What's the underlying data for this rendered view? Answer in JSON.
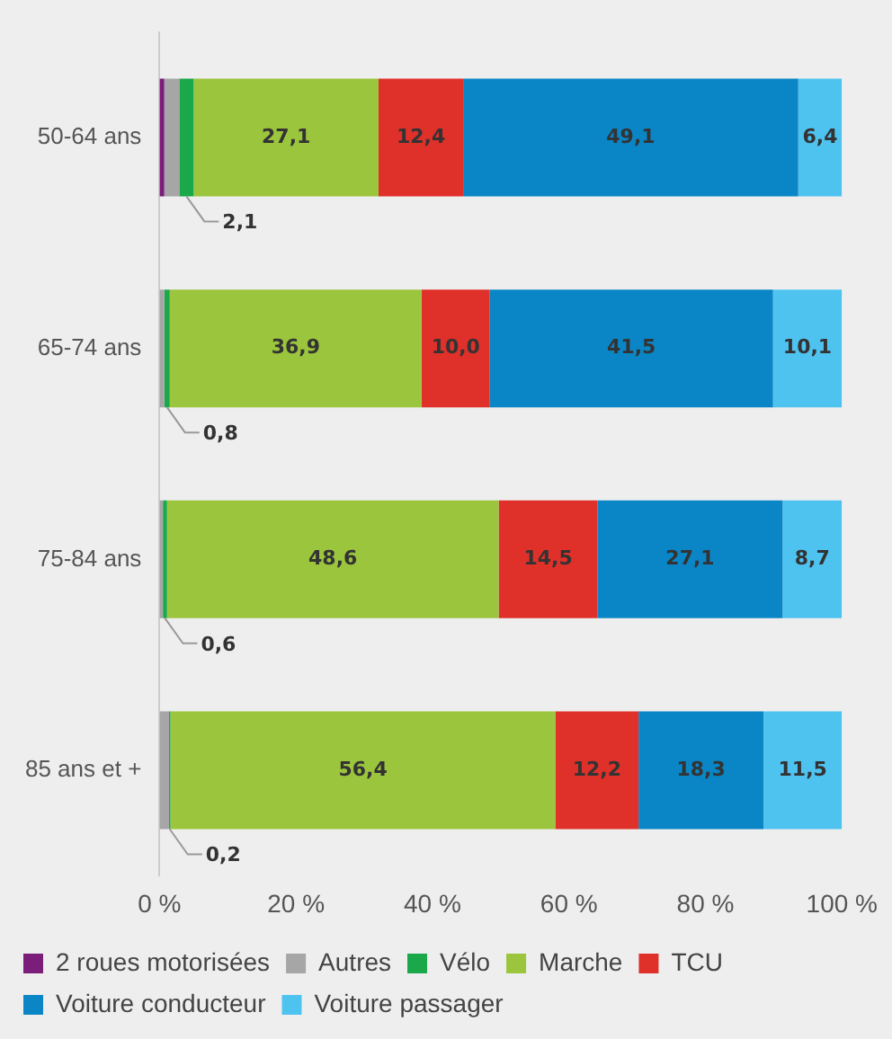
{
  "chart_data": {
    "type": "bar",
    "orientation": "horizontal",
    "stacked": true,
    "categories": [
      "50-64 ans",
      "65-74 ans",
      "75-84 ans",
      "85 ans et +"
    ],
    "series": [
      {
        "name": "2 roues motorisées",
        "color": "#7b1e7a",
        "values": [
          0.7,
          null,
          null,
          null
        ]
      },
      {
        "name": "Autres",
        "color": "#a6a6a6",
        "values": [
          2.2,
          0.7,
          0.5,
          1.4
        ]
      },
      {
        "name": "Vélo",
        "color": "#1aa84a",
        "values": [
          2.1,
          0.8,
          0.6,
          0.2
        ],
        "value_labels": [
          "2,1",
          "0,8",
          "0,6",
          "0,2"
        ]
      },
      {
        "name": "Marche",
        "color": "#9bc53d",
        "values": [
          27.1,
          36.9,
          48.6,
          56.4
        ],
        "value_labels": [
          "27,1",
          "36,9",
          "48,6",
          "56,4"
        ]
      },
      {
        "name": "TCU",
        "color": "#e0302a",
        "values": [
          12.4,
          10.0,
          14.5,
          12.2
        ],
        "value_labels": [
          "12,4",
          "10,0",
          "14,5",
          "12,2"
        ]
      },
      {
        "name": "Voiture conducteur",
        "color": "#0a86c6",
        "values": [
          49.1,
          41.5,
          27.1,
          18.3
        ],
        "value_labels": [
          "49,1",
          "41,5",
          "27,1",
          "18,3"
        ]
      },
      {
        "name": "Voiture passager",
        "color": "#4fc3f0",
        "values": [
          6.4,
          10.1,
          8.7,
          11.5
        ],
        "value_labels": [
          "6,4",
          "10,1",
          "8,7",
          "11,5"
        ]
      }
    ],
    "xlim": [
      0,
      100
    ],
    "xticks": [
      {
        "value": 0,
        "label": "0 %"
      },
      {
        "value": 20,
        "label": "20 %"
      },
      {
        "value": 40,
        "label": "40 %"
      },
      {
        "value": 60,
        "label": "60 %"
      },
      {
        "value": 80,
        "label": "80 %"
      },
      {
        "value": 100,
        "label": "100 %"
      }
    ],
    "grid": false,
    "legend": "bottom"
  }
}
